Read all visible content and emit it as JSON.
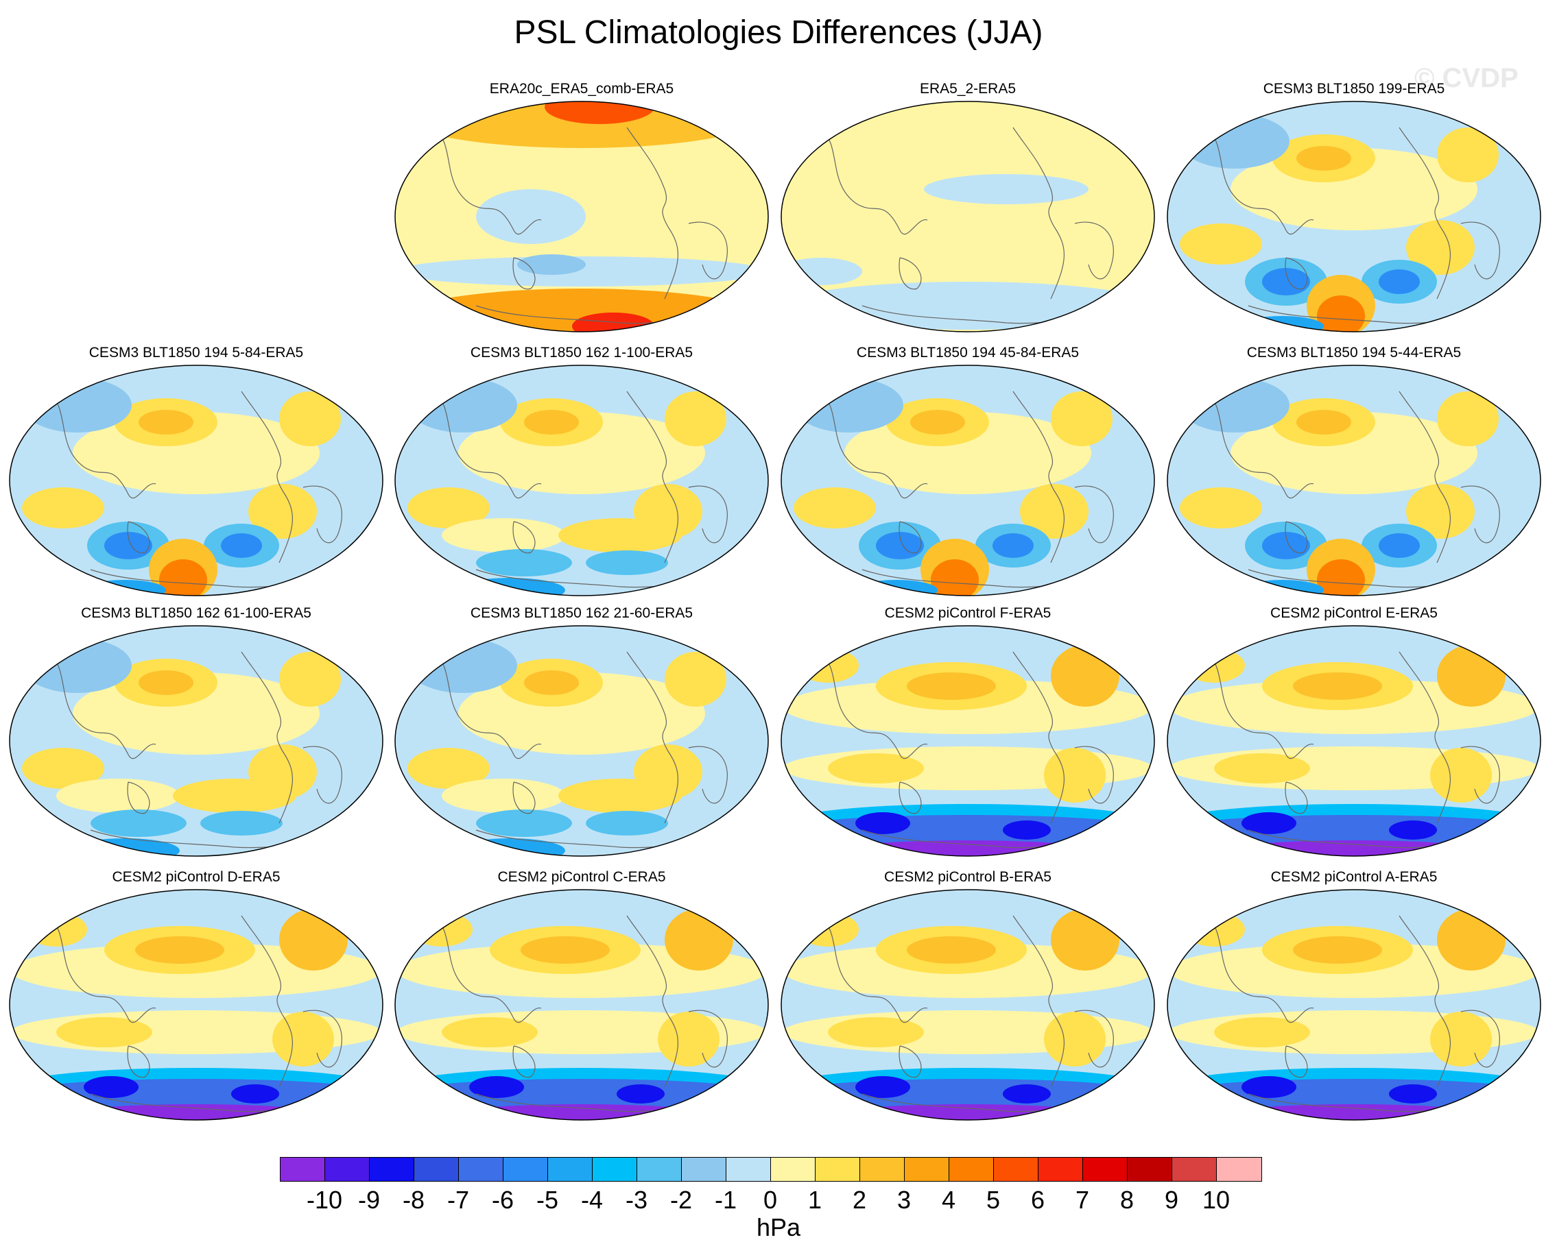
{
  "title": "PSL Climatologies Differences (JJA)",
  "watermark": "© CVDP",
  "panels": [
    {
      "title": "ERA20c_ERA5_comb-ERA5",
      "pattern": "era20c"
    },
    {
      "title": "ERA5_2-ERA5",
      "pattern": "era5"
    },
    {
      "title": "CESM3 BLT1850 199-ERA5",
      "pattern": "cesm3"
    },
    {
      "title": "CESM3 BLT1850 194 5-84-ERA5",
      "pattern": "cesm3"
    },
    {
      "title": "CESM3 BLT1850 162 1-100-ERA5",
      "pattern": "cesm3b"
    },
    {
      "title": "CESM3 BLT1850 194 45-84-ERA5",
      "pattern": "cesm3"
    },
    {
      "title": "CESM3 BLT1850 194 5-44-ERA5",
      "pattern": "cesm3"
    },
    {
      "title": "CESM3 BLT1850 162 61-100-ERA5",
      "pattern": "cesm3b"
    },
    {
      "title": "CESM3 BLT1850 162 21-60-ERA5",
      "pattern": "cesm3b"
    },
    {
      "title": "CESM2 piControl F-ERA5",
      "pattern": "cesm2"
    },
    {
      "title": "CESM2 piControl E-ERA5",
      "pattern": "cesm2"
    },
    {
      "title": "CESM2 piControl D-ERA5",
      "pattern": "cesm2"
    },
    {
      "title": "CESM2 piControl C-ERA5",
      "pattern": "cesm2"
    },
    {
      "title": "CESM2 piControl B-ERA5",
      "pattern": "cesm2"
    },
    {
      "title": "CESM2 piControl A-ERA5",
      "pattern": "cesm2"
    }
  ],
  "colorbar": {
    "unit": "hPa",
    "ticks": [
      "-10",
      "-9",
      "-8",
      "-7",
      "-6",
      "-5",
      "-4",
      "-3",
      "-2",
      "-1",
      "0",
      "1",
      "2",
      "3",
      "4",
      "5",
      "6",
      "7",
      "8",
      "9",
      "10"
    ],
    "colors": [
      "#8a2be2",
      "#4a18e8",
      "#1010f0",
      "#2e4fe0",
      "#3c6fe8",
      "#2b8cf5",
      "#1fa6f2",
      "#00bff8",
      "#55c2f0",
      "#8ec8ee",
      "#bfe3f6",
      "#fff6a5",
      "#ffe04f",
      "#fcc12b",
      "#fca311",
      "#fc7f00",
      "#fc5100",
      "#f7250a",
      "#e20000",
      "#c00000",
      "#d94040",
      "#ffb3b3"
    ]
  }
}
